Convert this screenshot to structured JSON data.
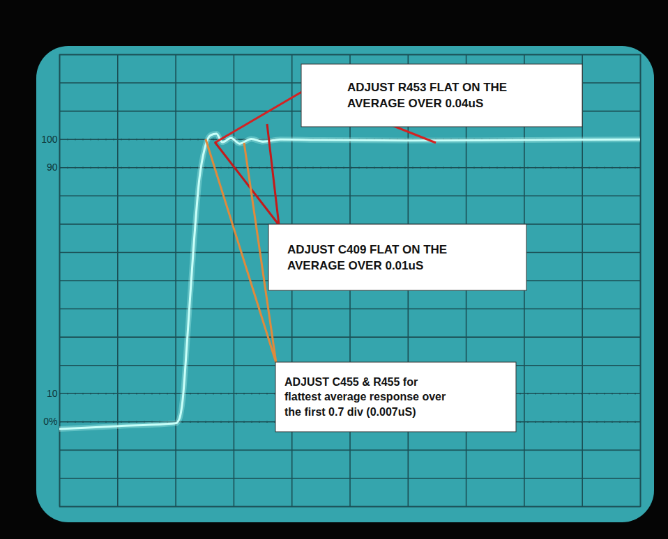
{
  "chart_data": {
    "type": "line",
    "x": [
      0,
      10,
      20,
      20.6,
      21.2,
      22,
      23,
      24,
      25,
      26,
      27,
      28,
      29.5,
      31,
      33,
      35,
      38,
      45,
      60,
      80,
      100
    ],
    "values": [
      -2.5,
      -1.5,
      -0.5,
      1,
      8,
      30,
      60,
      85,
      97,
      101.5,
      102,
      99,
      100.5,
      98.5,
      100.2,
      99.2,
      100,
      99.8,
      99.6,
      99.8,
      100
    ],
    "color": "#c8fff9",
    "xlim": [
      0,
      100
    ],
    "xticks": [
      0,
      10,
      20,
      30,
      40,
      50,
      60,
      70,
      80,
      90,
      100
    ],
    "ylim": [
      -30,
      130
    ],
    "yticks": [
      {
        "value": 0,
        "label": "0%"
      },
      10,
      90,
      100
    ],
    "tick_labels": "y",
    "grid": true,
    "annotations": [
      "ADJUST R453 FLAT ON THE AVERAGE OVER 0.04uS",
      "ADJUST C409 FLAT ON THE AVERAGE OVER 0.01uS",
      "ADJUST C455 & R455 for flattest average response over the first 0.7 div (0.007uS)"
    ]
  }
}
